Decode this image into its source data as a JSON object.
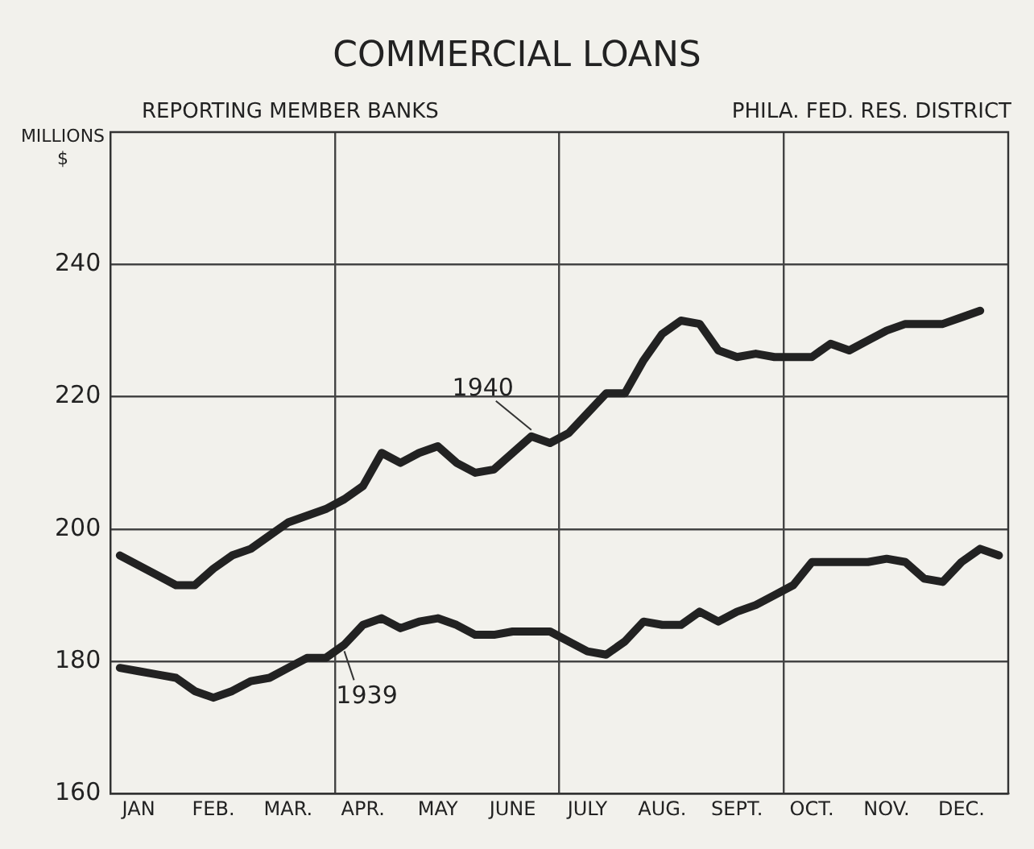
{
  "chart_data": {
    "type": "line",
    "title": "COMMERCIAL LOANS",
    "subtitle": "REPORTING MEMBER BANKS",
    "ylabel": "MILLIONS\n$",
    "annotations": [
      "PHILA. FED. RES. DISTRICT"
    ],
    "categories": [
      null,
      "JAN",
      null,
      null,
      null,
      "FEB.",
      null,
      null,
      null,
      "MAR.",
      null,
      null,
      null,
      "APR.",
      null,
      null,
      null,
      "MAY",
      null,
      null,
      null,
      "JUNE",
      null,
      null,
      null,
      "JULY",
      null,
      null,
      null,
      "AUG.",
      null,
      null,
      null,
      "SEPT.",
      null,
      null,
      null,
      "OCT.",
      null,
      null,
      null,
      "NOV.",
      null,
      null,
      null,
      "DEC.",
      null,
      null
    ],
    "series": [
      {
        "name": "1940",
        "color": "#222222",
        "values": [
          196,
          194.5,
          193,
          191.5,
          191.5,
          194,
          196,
          197,
          199,
          201,
          202,
          203,
          204.5,
          206.5,
          211.5,
          210,
          211.5,
          212.5,
          210,
          208.5,
          209,
          211.5,
          214,
          213,
          214.5,
          217.5,
          220.5,
          220.5,
          225.5,
          229.5,
          231.5,
          231,
          227,
          226,
          226.5,
          226,
          226,
          226,
          228,
          227,
          228.5,
          230,
          231,
          231,
          231,
          232,
          233,
          null
        ]
      },
      {
        "name": "1939",
        "color": "#222222",
        "values": [
          179,
          178.5,
          178,
          177.5,
          175.5,
          174.5,
          175.5,
          177,
          177.5,
          179,
          180.5,
          180.5,
          182.5,
          185.5,
          186.5,
          185,
          186,
          186.5,
          185.5,
          184,
          184,
          184.5,
          184.5,
          184.5,
          183,
          181.5,
          181,
          183,
          186,
          185.5,
          185.5,
          187.5,
          186,
          187.5,
          188.5,
          190,
          191.5,
          195,
          195,
          195,
          195,
          195.5,
          195,
          192.5,
          192,
          195,
          197,
          196
        ]
      }
    ],
    "ylim": [
      160,
      260
    ],
    "yticks": [
      160,
      180,
      200,
      220,
      240
    ],
    "grid": true,
    "legend": false,
    "marker": "none",
    "line_style": "solid"
  }
}
